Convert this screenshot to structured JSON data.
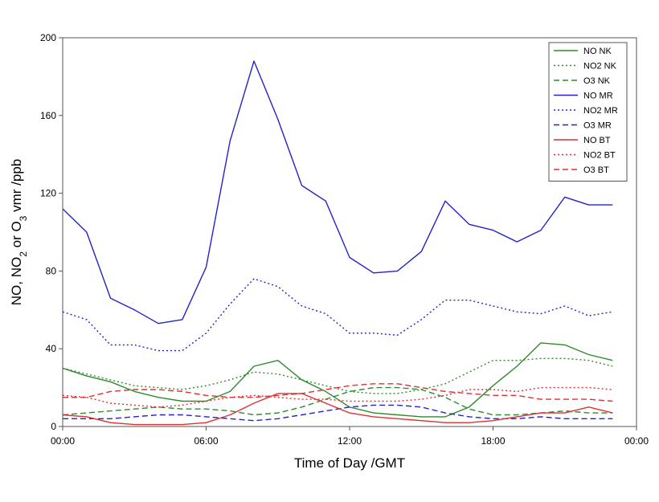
{
  "chart_data": {
    "type": "line",
    "xlabel": "Time of Day /GMT",
    "ylabel": "NO, NO2 or O3 vmr /ppb",
    "ylabel_parts": [
      "NO, NO",
      "2",
      " or O",
      "3",
      " vmr /ppb"
    ],
    "xlim": [
      0,
      24
    ],
    "ylim": [
      0,
      200
    ],
    "x_ticks": [
      0,
      6,
      12,
      18,
      24
    ],
    "x_tick_labels": [
      "00:00",
      "06:00",
      "12:00",
      "18:00",
      "00:00"
    ],
    "y_ticks": [
      0,
      40,
      80,
      120,
      160,
      200
    ],
    "y_tick_labels": [
      "0",
      "40",
      "80",
      "120",
      "160",
      "200"
    ],
    "grid": false,
    "legend_position": "top-right",
    "x": [
      0,
      1,
      2,
      3,
      4,
      5,
      6,
      7,
      8,
      9,
      10,
      11,
      12,
      13,
      14,
      15,
      16,
      17,
      18,
      19,
      20,
      21,
      22,
      23
    ],
    "series": [
      {
        "name": "NO NK",
        "color": "#2e8b2e",
        "dash": "solid",
        "values": [
          30,
          26,
          23,
          18,
          15,
          13,
          13,
          18,
          31,
          34,
          24,
          18,
          10,
          7,
          6,
          5,
          5,
          10,
          21,
          31,
          43,
          42,
          37,
          34
        ]
      },
      {
        "name": "NO2 NK",
        "color": "#2e8b2e",
        "dash": "dot",
        "values": [
          30,
          27,
          24,
          21,
          20,
          19,
          21,
          24,
          28,
          27,
          24,
          21,
          18,
          17,
          17,
          19,
          22,
          28,
          34,
          34,
          35,
          35,
          34,
          31
        ]
      },
      {
        "name": "O3 NK",
        "color": "#2e8b2e",
        "dash": "dash",
        "values": [
          6,
          7,
          8,
          9,
          10,
          9,
          9,
          8,
          6,
          7,
          10,
          14,
          18,
          20,
          20,
          19,
          15,
          9,
          6,
          6,
          7,
          8,
          7,
          7
        ]
      },
      {
        "name": "NO MR",
        "color": "#2323c8",
        "dash": "solid",
        "values": [
          112,
          100,
          66,
          60,
          53,
          55,
          82,
          147,
          188,
          158,
          124,
          116,
          87,
          79,
          80,
          90,
          116,
          104,
          101,
          95,
          101,
          118,
          114,
          114
        ]
      },
      {
        "name": "NO2 MR",
        "color": "#2323c8",
        "dash": "dot",
        "values": [
          59,
          55,
          42,
          42,
          39,
          39,
          48,
          63,
          76,
          72,
          62,
          58,
          48,
          48,
          47,
          55,
          65,
          65,
          62,
          59,
          58,
          62,
          57,
          59
        ]
      },
      {
        "name": "O3 MR",
        "color": "#2323c8",
        "dash": "dash",
        "values": [
          4,
          4,
          4,
          5,
          6,
          6,
          5,
          4,
          3,
          4,
          6,
          8,
          10,
          11,
          11,
          10,
          7,
          5,
          4,
          4,
          5,
          4,
          4,
          4
        ]
      },
      {
        "name": "NO BT",
        "color": "#e03030",
        "dash": "solid",
        "values": [
          6,
          5,
          2,
          1,
          1,
          1,
          2,
          6,
          12,
          17,
          17,
          12,
          7,
          5,
          4,
          3,
          2,
          2,
          3,
          5,
          7,
          7,
          10,
          7
        ]
      },
      {
        "name": "NO2 BT",
        "color": "#e03030",
        "dash": "dot",
        "values": [
          16,
          15,
          12,
          11,
          10,
          11,
          13,
          15,
          16,
          15,
          14,
          14,
          13,
          13,
          13,
          14,
          16,
          19,
          19,
          18,
          20,
          20,
          20,
          19
        ]
      },
      {
        "name": "O3 BT",
        "color": "#e03030",
        "dash": "dash",
        "values": [
          15,
          15,
          18,
          19,
          19,
          18,
          16,
          15,
          15,
          16,
          17,
          19,
          21,
          22,
          22,
          20,
          18,
          17,
          16,
          16,
          14,
          14,
          14,
          13
        ]
      }
    ]
  }
}
